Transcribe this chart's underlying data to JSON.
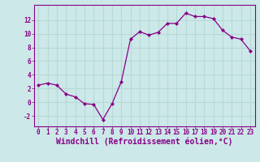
{
  "x": [
    0,
    1,
    2,
    3,
    4,
    5,
    6,
    7,
    8,
    9,
    10,
    11,
    12,
    13,
    14,
    15,
    16,
    17,
    18,
    19,
    20,
    21,
    22,
    23
  ],
  "y": [
    2.5,
    2.8,
    2.5,
    1.2,
    0.8,
    -0.2,
    -0.3,
    -2.5,
    -0.2,
    3.0,
    9.2,
    10.3,
    9.8,
    10.2,
    11.5,
    11.5,
    13.0,
    12.5,
    12.5,
    12.2,
    10.5,
    9.5,
    9.2,
    7.5
  ],
  "line_color": "#880088",
  "marker_color": "#880088",
  "bg_color": "#cce8e8",
  "grid_color": "#aadddd",
  "xlabel": "Windchill (Refroidissement éolien,°C)",
  "xlabel_color": "#880088",
  "xtick_labels": [
    "0",
    "1",
    "2",
    "3",
    "4",
    "5",
    "6",
    "7",
    "8",
    "9",
    "10",
    "11",
    "12",
    "13",
    "14",
    "15",
    "16",
    "17",
    "18",
    "19",
    "20",
    "21",
    "22",
    "23"
  ],
  "ytick_labels": [
    "-2",
    "0",
    "2",
    "4",
    "6",
    "8",
    "10",
    "12"
  ],
  "yticks": [
    -2,
    0,
    2,
    4,
    6,
    8,
    10,
    12
  ],
  "ylim": [
    -3.5,
    14.2
  ],
  "xlim": [
    -0.5,
    23.5
  ],
  "tick_color": "#880088",
  "tick_fontsize": 5.5,
  "xlabel_fontsize": 7.0
}
